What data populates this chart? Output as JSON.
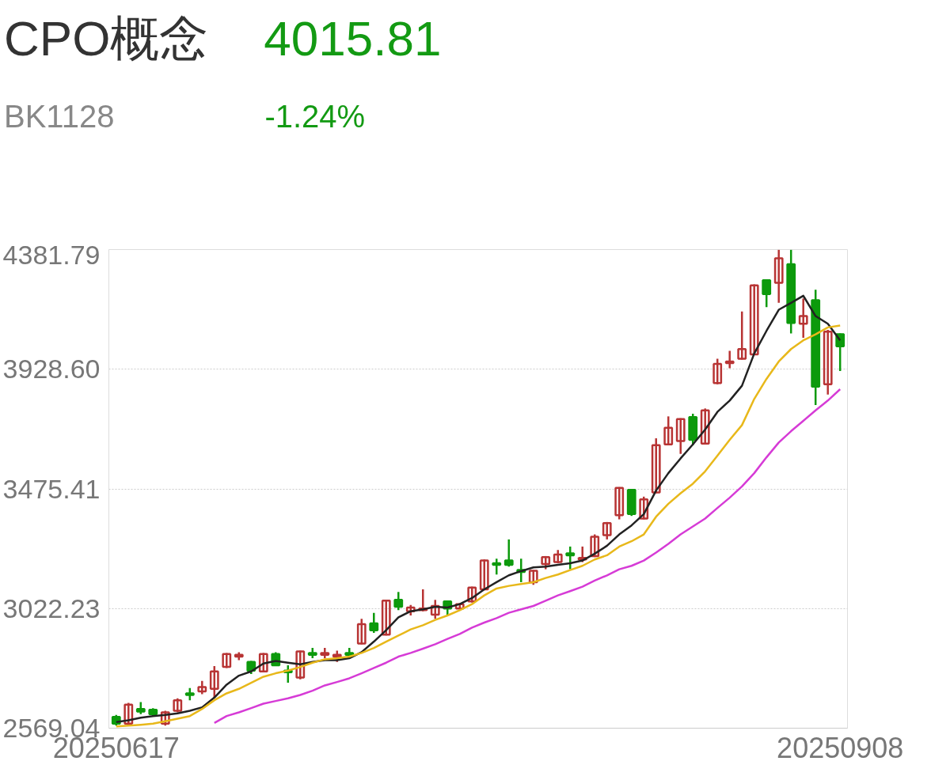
{
  "chart_data": {
    "type": "candlestick",
    "title": "CPO概念",
    "subtitle": "BK1128",
    "annotations": [
      "4015.81",
      "-1.24%"
    ],
    "categories": [
      "20250617",
      null,
      null,
      null,
      null,
      null,
      null,
      null,
      null,
      null,
      null,
      null,
      null,
      null,
      null,
      null,
      null,
      null,
      null,
      null,
      null,
      null,
      null,
      null,
      null,
      null,
      null,
      null,
      null,
      null,
      null,
      null,
      null,
      null,
      null,
      null,
      null,
      null,
      null,
      null,
      null,
      null,
      null,
      null,
      null,
      null,
      null,
      null,
      null,
      null,
      null,
      null,
      null,
      null,
      null,
      null,
      null,
      null,
      null,
      "20250908"
    ],
    "ohlc": [
      [
        2612,
        2619,
        2579,
        2586
      ],
      [
        2586,
        2665,
        2579,
        2658
      ],
      [
        2642,
        2668,
        2622,
        2632
      ],
      [
        2639,
        2645,
        2615,
        2622
      ],
      [
        2586,
        2635,
        2579,
        2629
      ],
      [
        2635,
        2682,
        2629,
        2675
      ],
      [
        2701,
        2721,
        2675,
        2695
      ],
      [
        2708,
        2748,
        2698,
        2725
      ],
      [
        2718,
        2804,
        2685,
        2784
      ],
      [
        2801,
        2854,
        2797,
        2850
      ],
      [
        2840,
        2857,
        2827,
        2847
      ],
      [
        2820,
        2824,
        2774,
        2787
      ],
      [
        2784,
        2854,
        2781,
        2850
      ],
      [
        2850,
        2857,
        2804,
        2807
      ],
      [
        2787,
        2807,
        2741,
        2781
      ],
      [
        2761,
        2863,
        2754,
        2860
      ],
      [
        2854,
        2873,
        2834,
        2847
      ],
      [
        2847,
        2873,
        2834,
        2854
      ],
      [
        2840,
        2863,
        2820,
        2847
      ],
      [
        2854,
        2873,
        2834,
        2847
      ],
      [
        2890,
        2983,
        2887,
        2963
      ],
      [
        2966,
        3006,
        2930,
        2940
      ],
      [
        2923,
        3055,
        2920,
        3052
      ],
      [
        3055,
        3085,
        3016,
        3029
      ],
      [
        3012,
        3036,
        2996,
        3026
      ],
      [
        3016,
        3095,
        3012,
        3022
      ],
      [
        2999,
        3055,
        2983,
        3032
      ],
      [
        3049,
        3052,
        2999,
        3022
      ],
      [
        3022,
        3042,
        3019,
        3039
      ],
      [
        3049,
        3105,
        3045,
        3102
      ],
      [
        3095,
        3208,
        3092,
        3204
      ],
      [
        3194,
        3211,
        3151,
        3188
      ],
      [
        3204,
        3284,
        3181,
        3188
      ],
      [
        3168,
        3211,
        3122,
        3161
      ],
      [
        3122,
        3168,
        3112,
        3165
      ],
      [
        3191,
        3221,
        3171,
        3217
      ],
      [
        3198,
        3244,
        3194,
        3227
      ],
      [
        3231,
        3257,
        3171,
        3224
      ],
      [
        3208,
        3257,
        3198,
        3214
      ],
      [
        3221,
        3303,
        3217,
        3294
      ],
      [
        3300,
        3350,
        3284,
        3346
      ],
      [
        3376,
        3482,
        3360,
        3479
      ],
      [
        3472,
        3475,
        3373,
        3380
      ],
      [
        3363,
        3446,
        3360,
        3436
      ],
      [
        3462,
        3667,
        3459,
        3641
      ],
      [
        3644,
        3750,
        3641,
        3707
      ],
      [
        3657,
        3743,
        3608,
        3740
      ],
      [
        3747,
        3760,
        3641,
        3661
      ],
      [
        3647,
        3780,
        3644,
        3773
      ],
      [
        3876,
        3968,
        3872,
        3949
      ],
      [
        3952,
        3998,
        3932,
        3958
      ],
      [
        3968,
        4147,
        3965,
        4005
      ],
      [
        3985,
        4250,
        3982,
        4246
      ],
      [
        4266,
        4269,
        4164,
        4213
      ],
      [
        4256,
        4381,
        4180,
        4349
      ],
      [
        4326,
        4381,
        4064,
        4104
      ],
      [
        4101,
        4197,
        4048,
        4130
      ],
      [
        4190,
        4230,
        3793,
        3863
      ],
      [
        3872,
        4078,
        3833,
        4071
      ],
      [
        4061,
        4064,
        3922,
        4015.81
      ]
    ],
    "colors": [
      "#0c9a0c",
      "#b83434",
      "#0c9a0c",
      "#0c9a0c",
      "#b83434",
      "#b83434",
      "#0c9a0c",
      "#b83434",
      "#b83434",
      "#b83434",
      "#b83434",
      "#0c9a0c",
      "#b83434",
      "#0c9a0c",
      "#0c9a0c",
      "#b83434",
      "#0c9a0c",
      "#b83434",
      "#b83434",
      "#0c9a0c",
      "#b83434",
      "#0c9a0c",
      "#b83434",
      "#0c9a0c",
      "#b83434",
      "#b83434",
      "#b83434",
      "#0c9a0c",
      "#b83434",
      "#b83434",
      "#b83434",
      "#0c9a0c",
      "#0c9a0c",
      "#0c9a0c",
      "#b83434",
      "#b83434",
      "#b83434",
      "#0c9a0c",
      "#b83434",
      "#b83434",
      "#b83434",
      "#b83434",
      "#0c9a0c",
      "#b83434",
      "#b83434",
      "#b83434",
      "#b83434",
      "#0c9a0c",
      "#b83434",
      "#b83434",
      "#b83434",
      "#b83434",
      "#b83434",
      "#0c9a0c",
      "#b83434",
      "#0c9a0c",
      "#b83434",
      "#0c9a0c",
      "#b83434",
      "#0c9a0c"
    ],
    "series": [
      {
        "type": "line",
        "color": "#222222",
        "values": [
          2592,
          2599,
          2609,
          2615,
          2619,
          2625,
          2635,
          2648,
          2685,
          2734,
          2768,
          2784,
          2814,
          2824,
          2817,
          2811,
          2820,
          2827,
          2827,
          2834,
          2857,
          2897,
          2940,
          2989,
          3012,
          3019,
          3029,
          3026,
          3039,
          3062,
          3095,
          3122,
          3148,
          3164,
          3178,
          3181,
          3188,
          3194,
          3204,
          3230,
          3260,
          3303,
          3337,
          3380,
          3469,
          3535,
          3591,
          3644,
          3700,
          3767,
          3810,
          3866,
          3988,
          4074,
          4154,
          4180,
          4207,
          4130,
          4101,
          4038
        ]
      },
      {
        "type": "line",
        "color": "#e8b81a",
        "values": [
          2576,
          2579,
          2582,
          2586,
          2595,
          2605,
          2615,
          2642,
          2675,
          2701,
          2718,
          2741,
          2764,
          2777,
          2787,
          2801,
          2817,
          2830,
          2834,
          2840,
          2854,
          2873,
          2897,
          2920,
          2943,
          2959,
          2979,
          2996,
          3016,
          3039,
          3072,
          3098,
          3108,
          3115,
          3122,
          3138,
          3151,
          3168,
          3184,
          3208,
          3224,
          3257,
          3277,
          3303,
          3370,
          3419,
          3459,
          3495,
          3542,
          3601,
          3661,
          3717,
          3816,
          3892,
          3958,
          4005,
          4038,
          4061,
          4087,
          4094
        ]
      },
      {
        "type": "line",
        "color": "#d63bd6",
        "values": [
          null,
          null,
          null,
          null,
          null,
          null,
          null,
          null,
          2589,
          2615,
          2629,
          2645,
          2662,
          2672,
          2682,
          2695,
          2711,
          2731,
          2744,
          2758,
          2777,
          2797,
          2817,
          2840,
          2854,
          2870,
          2887,
          2907,
          2926,
          2950,
          2969,
          2986,
          3006,
          3019,
          3032,
          3052,
          3072,
          3088,
          3105,
          3128,
          3148,
          3171,
          3184,
          3204,
          3234,
          3267,
          3303,
          3333,
          3363,
          3403,
          3442,
          3485,
          3535,
          3595,
          3651,
          3694,
          3733,
          3773,
          3810,
          3853
        ]
      }
    ],
    "ylim": [
      2569.04,
      4381.79
    ],
    "yticks": [
      {
        "value": 2569.04,
        "label": "2569.04"
      },
      {
        "value": 3022.23,
        "label": "3022.23"
      },
      {
        "value": 3475.41,
        "label": "3475.41"
      },
      {
        "value": 3928.6,
        "label": "3928.60"
      },
      {
        "value": 4381.79,
        "label": "4381.79"
      }
    ],
    "grid": "y"
  }
}
